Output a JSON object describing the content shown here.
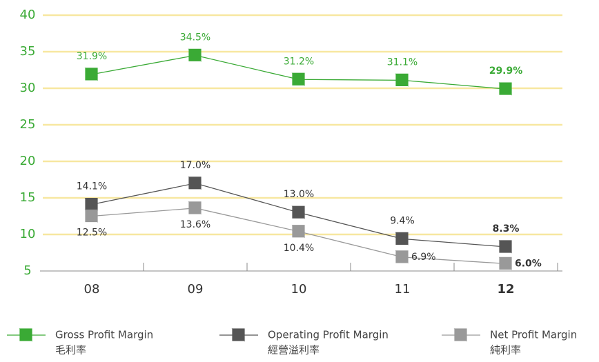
{
  "chart_data": {
    "type": "line",
    "categories": [
      "08",
      "09",
      "10",
      "11",
      "12"
    ],
    "ylim": [
      5,
      40
    ],
    "yticks": [
      5,
      10,
      15,
      20,
      25,
      30,
      35,
      40
    ],
    "grid": true,
    "series": [
      {
        "name": "Gross Profit Margin",
        "name_zh": "毛利率",
        "color": "#3aaa35",
        "values": [
          31.9,
          34.5,
          31.2,
          31.1,
          29.9
        ],
        "value_labels": [
          "31.9%",
          "34.5%",
          "31.2%",
          "31.1%",
          "29.9%"
        ]
      },
      {
        "name": "Operating Profit Margin",
        "name_zh": "經營溢利率",
        "color": "#555555",
        "values": [
          14.1,
          17.0,
          13.0,
          9.4,
          8.3
        ],
        "value_labels": [
          "14.1%",
          "17.0%",
          "13.0%",
          "9.4%",
          "8.3%"
        ]
      },
      {
        "name": "Net Profit Margin",
        "name_zh": "純利率",
        "color": "#999999",
        "values": [
          12.5,
          13.6,
          10.4,
          6.9,
          6.0
        ],
        "value_labels": [
          "12.5%",
          "13.6%",
          "10.4%",
          "6.9%",
          "6.0%"
        ]
      }
    ]
  }
}
